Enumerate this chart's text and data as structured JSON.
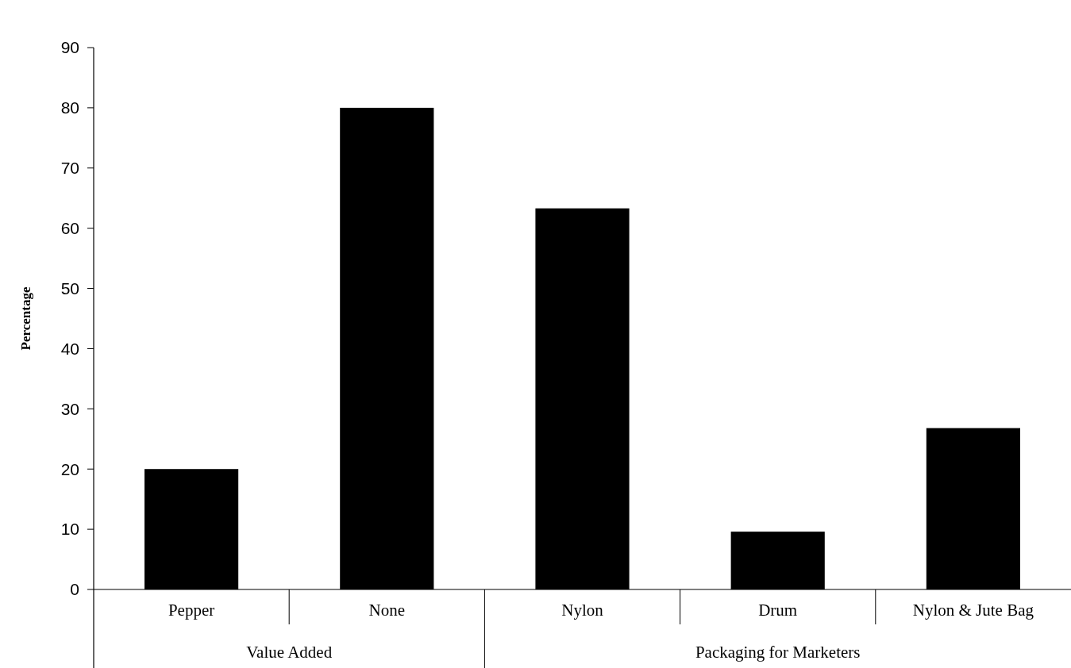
{
  "chart_data": {
    "type": "bar",
    "ylabel": "Percentage",
    "categories": [
      "Pepper",
      "None",
      "Nylon",
      "Drum",
      "Nylon & Jute Bag"
    ],
    "values": [
      20,
      80,
      63.3,
      9.6,
      26.8
    ],
    "color": "#000000",
    "ylim": [
      0,
      90
    ],
    "yticks": [
      0,
      10,
      20,
      30,
      40,
      50,
      60,
      70,
      80,
      90
    ],
    "annotations": [
      "Value Added",
      "Packaging for Marketers"
    ]
  }
}
